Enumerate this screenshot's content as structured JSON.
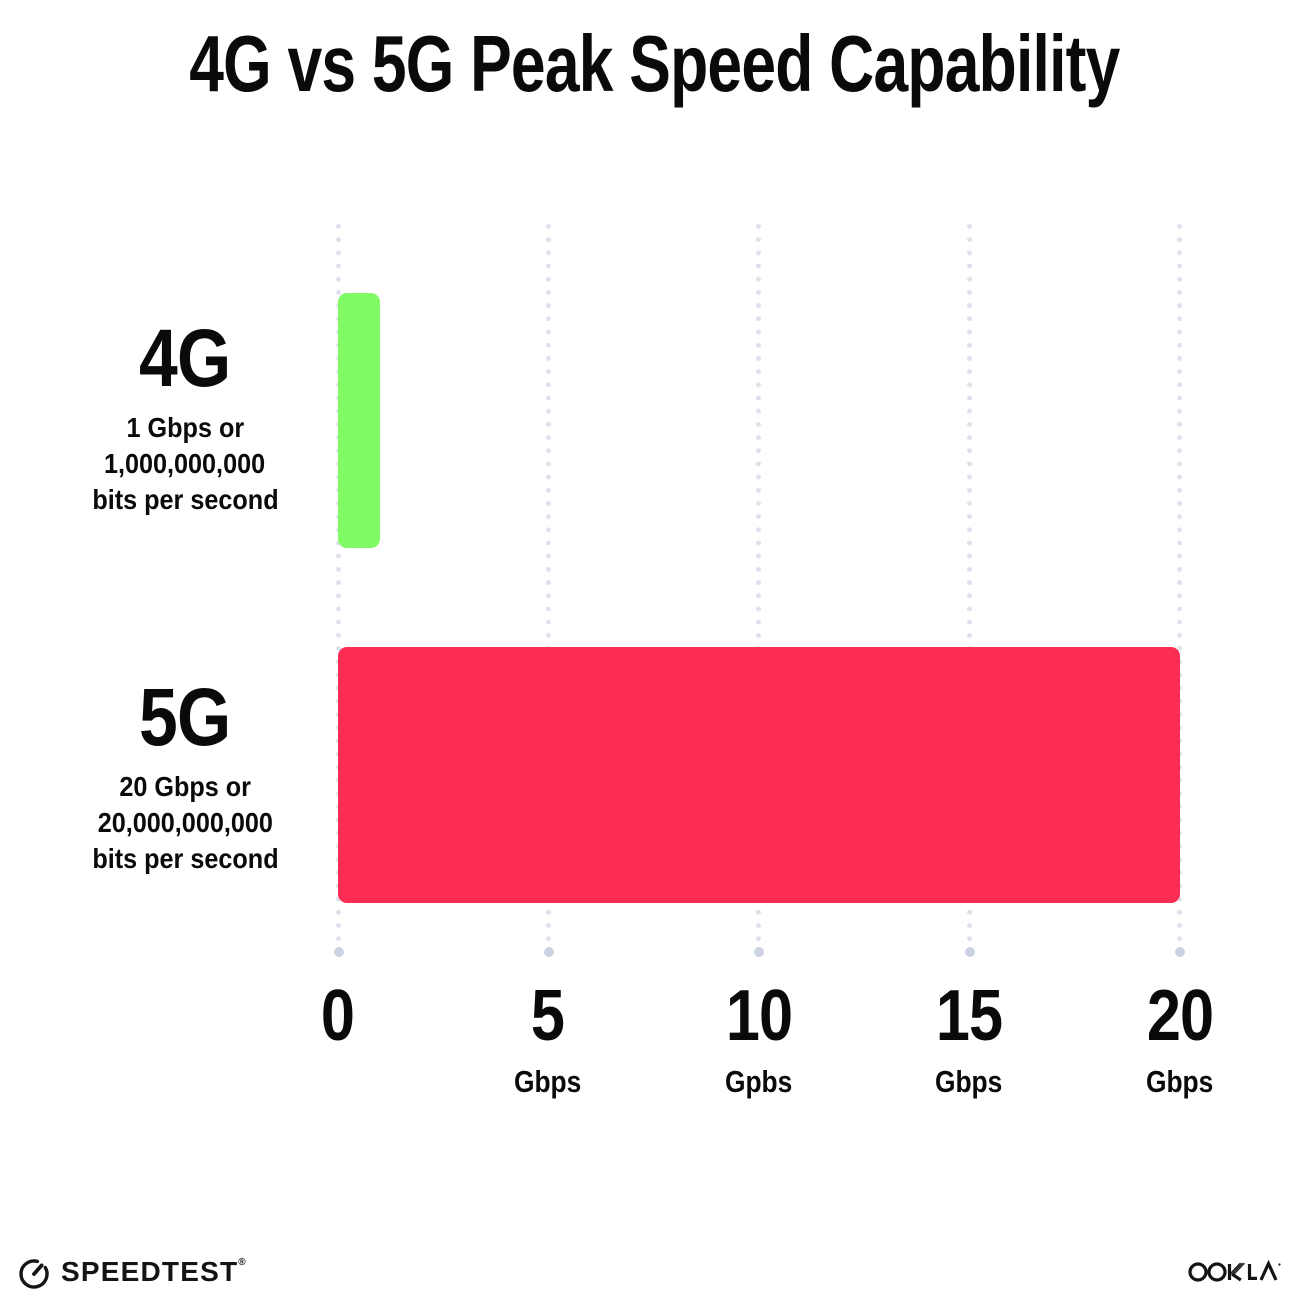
{
  "title": "4G vs 5G Peak Speed Capability",
  "chart_data": {
    "type": "bar",
    "orientation": "horizontal",
    "title": "4G vs 5G Peak Speed Capability",
    "categories": [
      "4G",
      "5G"
    ],
    "values": [
      1,
      20
    ],
    "value_unit": "Gbps",
    "xlim": [
      0,
      20
    ],
    "grid": "dotted-vertical-gridlines",
    "legend": "none",
    "bar_colors": [
      "#80FB66",
      "#FC2D55"
    ],
    "series_labels": [
      {
        "name": "4G",
        "desc_line1": "1 Gbps or",
        "desc_line2": "1,000,000,000",
        "desc_line3": "bits per second"
      },
      {
        "name": "5G",
        "desc_line1": "20 Gbps or",
        "desc_line2": "20,000,000,000",
        "desc_line3": "bits per second"
      }
    ],
    "x_ticks": [
      {
        "value": "0",
        "unit": ""
      },
      {
        "value": "5",
        "unit": "Gbps"
      },
      {
        "value": "10",
        "unit": "Gpbs"
      },
      {
        "value": "15",
        "unit": "Gbps"
      },
      {
        "value": "20",
        "unit": "Gbps"
      }
    ]
  },
  "footer": {
    "speedtest_label": "SPEEDTEST",
    "speedtest_trademark": "®",
    "ookla_label": "OOKLA",
    "ookla_trademark": "®"
  },
  "colors": {
    "background": "#ffffff",
    "text": "#0a0a0a",
    "bar_4g": "#80FB66",
    "bar_5g": "#FC2D55",
    "gridline_dot": "#dde1ec",
    "gridline_end_dot": "#ccd2e2"
  }
}
